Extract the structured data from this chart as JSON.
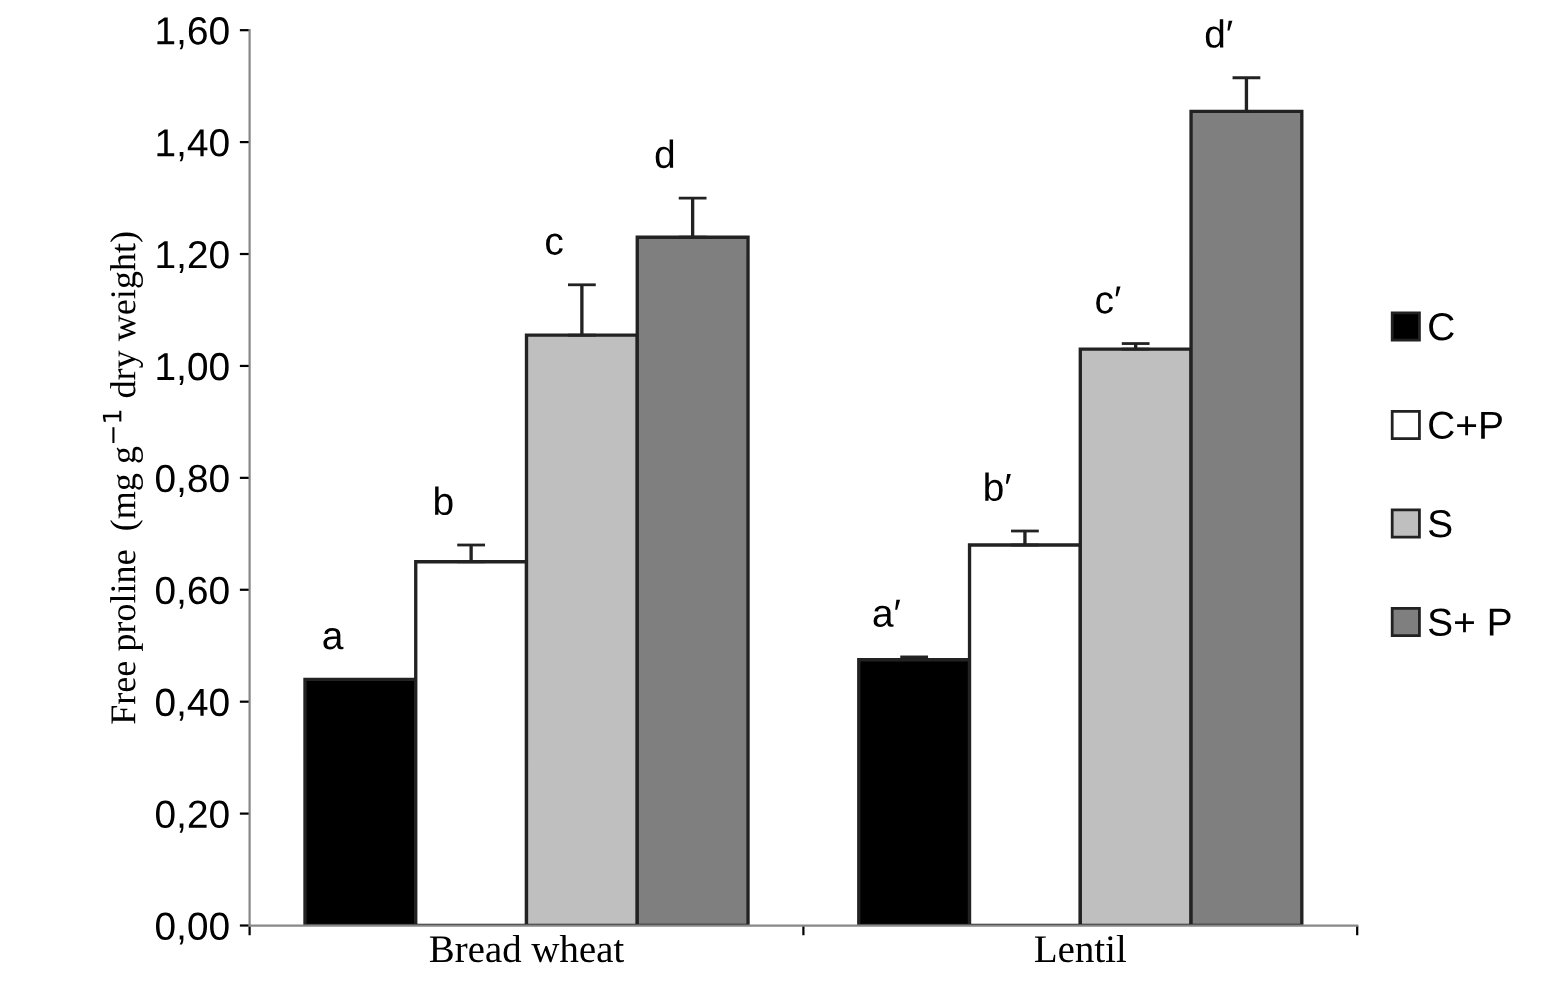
{
  "chart_data": {
    "type": "bar",
    "ylabel": "Free proline  (mg g$^{−1}$ dry weight)",
    "categories": [
      "Bread wheat",
      "Lentil"
    ],
    "series": [
      {
        "name": "C",
        "color": "#000000",
        "values": [
          0.44,
          0.475
        ],
        "errors": [
          null,
          0.005
        ]
      },
      {
        "name": "C+P",
        "color": "#ffffff",
        "values": [
          0.65,
          0.68
        ],
        "errors": [
          0.03,
          0.025
        ]
      },
      {
        "name": "S",
        "color": "#bfbfbf",
        "values": [
          1.055,
          1.03
        ],
        "errors": [
          0.09,
          0.01
        ]
      },
      {
        "name": "S+ P",
        "color": "#7f7f7f",
        "values": [
          1.23,
          1.455
        ],
        "errors": [
          0.07,
          0.06
        ]
      }
    ],
    "ylim": [
      0,
      1.6
    ],
    "yticks": [
      {
        "value": 0,
        "label": "0,00"
      },
      {
        "value": 0.2,
        "label": "0,20"
      },
      {
        "value": 0.4,
        "label": "0,40"
      },
      {
        "value": 0.6,
        "label": "0,60"
      },
      {
        "value": 0.8,
        "label": "0,80"
      },
      {
        "value": 1.0,
        "label": "1,00"
      },
      {
        "value": 1.2,
        "label": "1,20"
      },
      {
        "value": 1.4,
        "label": "1,40"
      },
      {
        "value": 1.6,
        "label": "1,60"
      }
    ],
    "annotations": [
      "a",
      "b",
      "c",
      "d",
      "a′",
      "b′",
      "c′",
      "d′"
    ],
    "legend": "right",
    "grid": false
  }
}
